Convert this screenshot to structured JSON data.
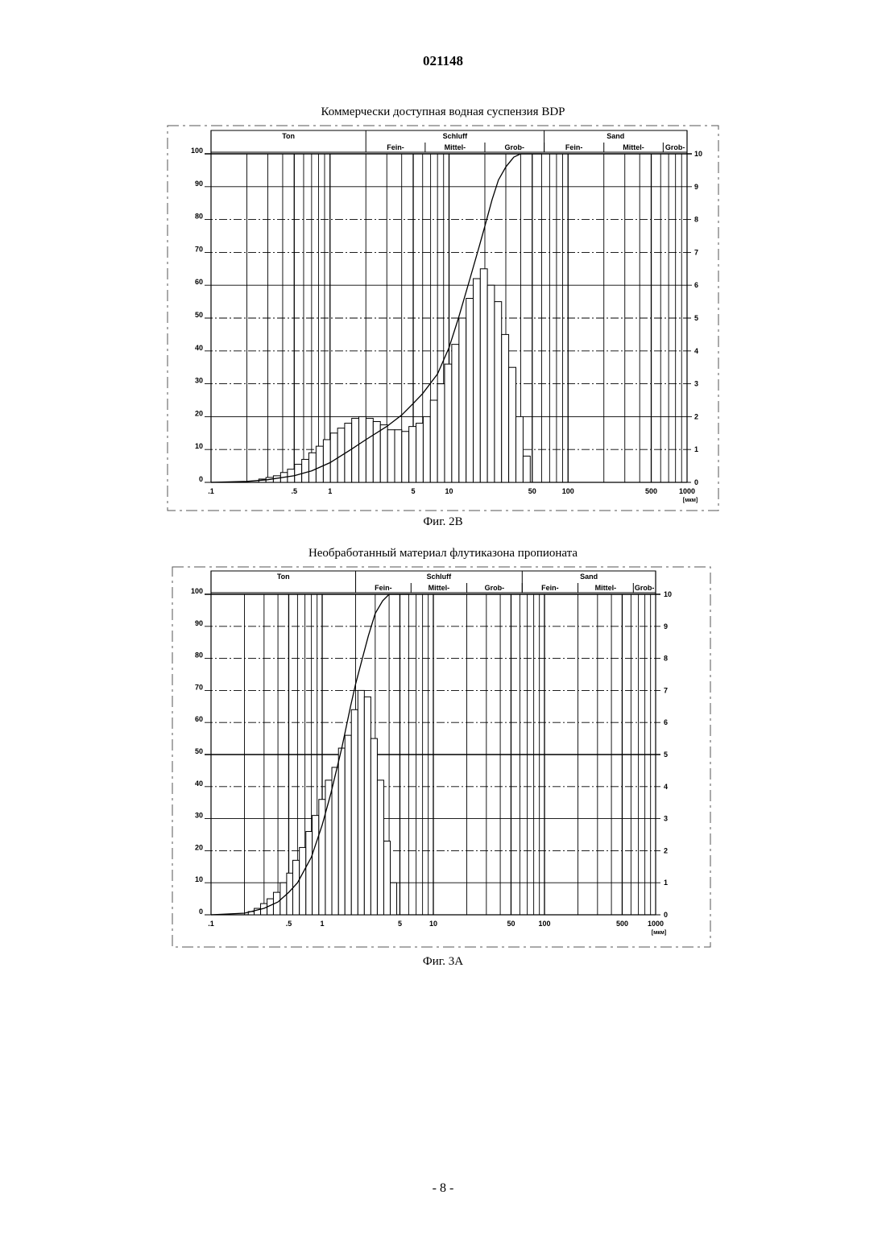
{
  "header": {
    "doc_number": "021148"
  },
  "page": {
    "number": "- 8 -"
  },
  "figures": [
    {
      "title": "Коммерчески доступная водная суспензия BDP",
      "caption": "Фиг. 2В"
    },
    {
      "title": "Необработанный материал флутиказона пропионата",
      "caption": "Фиг. 3А"
    }
  ],
  "chart_data": [
    {
      "type": "bar",
      "title": "Коммерчески доступная водная суспензия BDP",
      "x_scale": "log",
      "x_unit": "[мкм]",
      "xlim": [
        0.1,
        1000
      ],
      "x_tick_labels": [
        {
          "value": 0.1,
          "label": ".1"
        },
        {
          "value": 0.5,
          "label": ".5"
        },
        {
          "value": 1,
          "label": "1"
        },
        {
          "value": 5,
          "label": "5"
        },
        {
          "value": 10,
          "label": "10"
        },
        {
          "value": 50,
          "label": "50"
        },
        {
          "value": 100,
          "label": "100"
        },
        {
          "value": 500,
          "label": "500"
        },
        {
          "value": 1000,
          "label": "1000"
        }
      ],
      "y_left_ticks": [
        "0",
        "10",
        "20",
        "30",
        "40",
        "50",
        "60",
        "70",
        "80",
        "90",
        "100"
      ],
      "y_right_ticks": [
        "0",
        "1",
        "2",
        "3",
        "4",
        "5",
        "6",
        "7",
        "8",
        "9",
        "10"
      ],
      "ylim_left": [
        0,
        100
      ],
      "ylim_right": [
        0,
        10
      ],
      "classification": {
        "groups": [
          {
            "name": "Ton",
            "from": 0.1,
            "to": 2
          },
          {
            "name": "Schluff",
            "from": 2,
            "to": 63
          },
          {
            "name": "Sand",
            "from": 63,
            "to": 1000
          }
        ],
        "subgroups": [
          {
            "name": "Fein-",
            "from": 2,
            "to": 6.3
          },
          {
            "name": "Mittel-",
            "from": 6.3,
            "to": 20
          },
          {
            "name": "Grob-",
            "from": 20,
            "to": 63
          },
          {
            "name": "Fein-",
            "from": 63,
            "to": 200
          },
          {
            "name": "Mittel-",
            "from": 200,
            "to": 630
          },
          {
            "name": "Grob-",
            "from": 630,
            "to": 1000
          }
        ]
      },
      "bars_x_um": [
        0.27,
        0.31,
        0.36,
        0.41,
        0.47,
        0.54,
        0.62,
        0.71,
        0.82,
        0.94,
        1.08,
        1.24,
        1.42,
        1.63,
        1.87,
        2.15,
        2.47,
        2.84,
        3.26,
        3.74,
        4.29,
        4.93,
        5.66,
        6.5,
        7.46,
        8.56,
        9.83,
        11.3,
        13.0,
        14.9,
        17.1,
        19.6,
        22.5,
        25.8,
        29.6,
        34.0,
        39.1,
        44.9
      ],
      "bars_values_right_axis": [
        0.1,
        0.15,
        0.2,
        0.3,
        0.4,
        0.55,
        0.7,
        0.9,
        1.1,
        1.3,
        1.5,
        1.65,
        1.8,
        1.95,
        2.0,
        1.95,
        1.85,
        1.75,
        1.6,
        1.6,
        1.55,
        1.7,
        1.8,
        2.0,
        2.5,
        3.0,
        3.6,
        4.2,
        5.0,
        5.6,
        6.2,
        6.5,
        6.0,
        5.5,
        4.5,
        3.5,
        2.0,
        0.8
      ],
      "cumulative_curve_x_um": [
        0.1,
        0.2,
        0.3,
        0.5,
        0.7,
        1,
        1.5,
        2,
        3,
        4,
        5,
        6,
        8,
        10,
        12,
        15,
        18,
        20,
        23,
        26,
        30,
        35,
        40,
        50
      ],
      "cumulative_curve_percent": [
        0,
        0.3,
        0.8,
        2,
        3.5,
        6,
        10,
        13,
        17,
        20.5,
        24,
        27,
        33,
        41,
        50,
        62,
        72,
        78,
        86,
        92,
        96,
        99,
        100,
        100
      ]
    },
    {
      "type": "bar",
      "title": "Необработанный материал флутиказона пропионата",
      "x_scale": "log",
      "x_unit": "[мкм]",
      "xlim": [
        0.1,
        1000
      ],
      "x_tick_labels": [
        {
          "value": 0.1,
          "label": ".1"
        },
        {
          "value": 0.5,
          "label": ".5"
        },
        {
          "value": 1,
          "label": "1"
        },
        {
          "value": 5,
          "label": "5"
        },
        {
          "value": 10,
          "label": "10"
        },
        {
          "value": 50,
          "label": "50"
        },
        {
          "value": 100,
          "label": "100"
        },
        {
          "value": 500,
          "label": "500"
        },
        {
          "value": 1000,
          "label": "1000"
        }
      ],
      "y_left_ticks": [
        "0",
        "10",
        "20",
        "30",
        "40",
        "50",
        "60",
        "70",
        "80",
        "90",
        "100"
      ],
      "y_right_ticks": [
        "0",
        "1",
        "2",
        "3",
        "4",
        "5",
        "6",
        "7",
        "8",
        "9",
        "10"
      ],
      "ylim_left": [
        0,
        100
      ],
      "ylim_right": [
        0,
        10
      ],
      "classification": {
        "groups": [
          {
            "name": "Ton",
            "from": 0.1,
            "to": 2
          },
          {
            "name": "Schluff",
            "from": 2,
            "to": 63
          },
          {
            "name": "Sand",
            "from": 63,
            "to": 1000
          }
        ],
        "subgroups": [
          {
            "name": "Fein-",
            "from": 2,
            "to": 6.3
          },
          {
            "name": "Mittel-",
            "from": 6.3,
            "to": 20
          },
          {
            "name": "Grob-",
            "from": 20,
            "to": 63
          },
          {
            "name": "Fein-",
            "from": 63,
            "to": 200
          },
          {
            "name": "Mittel-",
            "from": 200,
            "to": 630
          },
          {
            "name": "Grob-",
            "from": 630,
            "to": 1000
          }
        ]
      },
      "bars_x_um": [
        0.23,
        0.26,
        0.3,
        0.34,
        0.39,
        0.45,
        0.51,
        0.58,
        0.67,
        0.76,
        0.87,
        1.0,
        1.14,
        1.31,
        1.5,
        1.71,
        1.96,
        2.24,
        2.56,
        2.93,
        3.35,
        3.83,
        4.38
      ],
      "bars_values_right_axis": [
        0.1,
        0.2,
        0.35,
        0.5,
        0.7,
        1.0,
        1.3,
        1.7,
        2.1,
        2.6,
        3.1,
        3.6,
        4.2,
        4.6,
        5.2,
        5.6,
        6.4,
        7.0,
        6.8,
        5.5,
        4.2,
        2.3,
        1.0
      ],
      "cumulative_curve_x_um": [
        0.1,
        0.2,
        0.3,
        0.4,
        0.5,
        0.6,
        0.8,
        1,
        1.2,
        1.5,
        1.8,
        2,
        2.3,
        2.6,
        3,
        3.5,
        4,
        5
      ],
      "cumulative_curve_percent": [
        0,
        0.5,
        2,
        4,
        7,
        10,
        18,
        28,
        38,
        52,
        65,
        72,
        80,
        87,
        94,
        98,
        100,
        100
      ]
    }
  ]
}
